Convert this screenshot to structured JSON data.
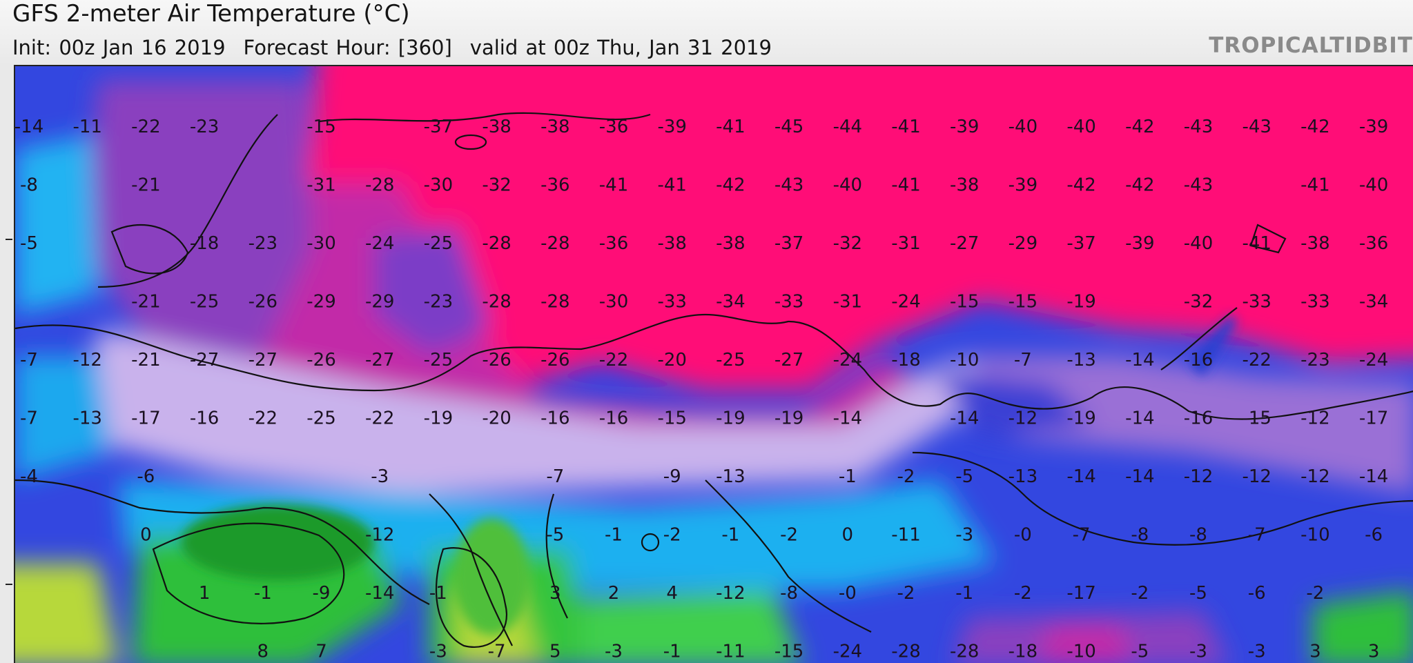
{
  "header": {
    "title": "GFS 2-meter Air Temperature (°C)",
    "init": "Init: 00z Jan 16 2019",
    "forecast_hour": "Forecast Hour: [360]",
    "valid": "valid at 00z Thu, Jan 31 2019",
    "brand": "TROPICALTIDBIT"
  },
  "colors": {
    "extreme_cold": "#ff1177",
    "very_cold": "#d8259a",
    "cold_purple": "#8a3fbf",
    "lavender": "#c9b2ec",
    "blue": "#3347e0",
    "cyan": "#1fb0f0",
    "green": "#2fbf3a",
    "yellow_green": "#b7d83a"
  },
  "temperature_grid": [
    [
      "-14",
      "-11",
      "-22",
      "-23",
      "",
      "-15",
      "",
      "-37",
      "-38",
      "-38",
      "-36",
      "-39",
      "-41",
      "-45",
      "-44",
      "-41",
      "-39",
      "-40",
      "-40",
      "-42",
      "-43",
      "-43",
      "-42",
      "-39"
    ],
    [
      "-8",
      "",
      "-21",
      "",
      "",
      "-31",
      "-28",
      "-30",
      "-32",
      "-36",
      "-41",
      "-41",
      "-42",
      "-43",
      "-40",
      "-41",
      "-38",
      "-39",
      "-42",
      "-42",
      "-43",
      "",
      "-41",
      "-40"
    ],
    [
      "-5",
      "",
      "",
      "-18",
      "-23",
      "-30",
      "-24",
      "-25",
      "-28",
      "-28",
      "-36",
      "-38",
      "-38",
      "-37",
      "-32",
      "-31",
      "-27",
      "-29",
      "-37",
      "-39",
      "-40",
      "-41",
      "-38",
      "-36"
    ],
    [
      "",
      "",
      "-21",
      "-25",
      "-26",
      "-29",
      "-29",
      "-23",
      "-28",
      "-28",
      "-30",
      "-33",
      "-34",
      "-33",
      "-31",
      "-24",
      "-15",
      "-15",
      "-19",
      "",
      "-32",
      "-33",
      "-33",
      "-34"
    ],
    [
      "-7",
      "-12",
      "-21",
      "-27",
      "-27",
      "-26",
      "-27",
      "-25",
      "-26",
      "-26",
      "-22",
      "-20",
      "-25",
      "-27",
      "-24",
      "-18",
      "-10",
      "-7",
      "-13",
      "-14",
      "-16",
      "-22",
      "-23",
      "-24"
    ],
    [
      "-7",
      "-13",
      "-17",
      "-16",
      "-22",
      "-25",
      "-22",
      "-19",
      "-20",
      "-16",
      "-16",
      "-15",
      "-19",
      "-19",
      "-14",
      "",
      "-14",
      "-12",
      "-19",
      "-14",
      "-16",
      "-15",
      "-12",
      "-17"
    ],
    [
      "-4",
      "",
      "-6",
      "",
      "",
      "",
      "-3",
      "",
      "",
      "-7",
      "",
      "-9",
      "-13",
      "",
      "-1",
      "-2",
      "-5",
      "-13",
      "-14",
      "-14",
      "-12",
      "-12",
      "-12",
      "-14"
    ],
    [
      "",
      "",
      "0",
      "",
      "",
      "",
      "-12",
      "",
      "",
      "-5",
      "-1",
      "-2",
      "-1",
      "-2",
      "0",
      "-11",
      "-3",
      "-0",
      "-7",
      "-8",
      "-8",
      "-7",
      "-10",
      "-6"
    ],
    [
      "",
      "",
      "",
      "1",
      "-1",
      "-9",
      "-14",
      "-1",
      "",
      "3",
      "2",
      "4",
      "-12",
      "-8",
      "-0",
      "-2",
      "-1",
      "-2",
      "-17",
      "-2",
      "-5",
      "-6",
      "-2",
      ""
    ],
    [
      "",
      "",
      "",
      "",
      "8",
      "7",
      "",
      "-3",
      "-7",
      "5",
      "-3",
      "-1",
      "-11",
      "-15",
      "-24",
      "-28",
      "-28",
      "-18",
      "-10",
      "-5",
      "-3",
      "-3",
      "3",
      "3"
    ]
  ]
}
